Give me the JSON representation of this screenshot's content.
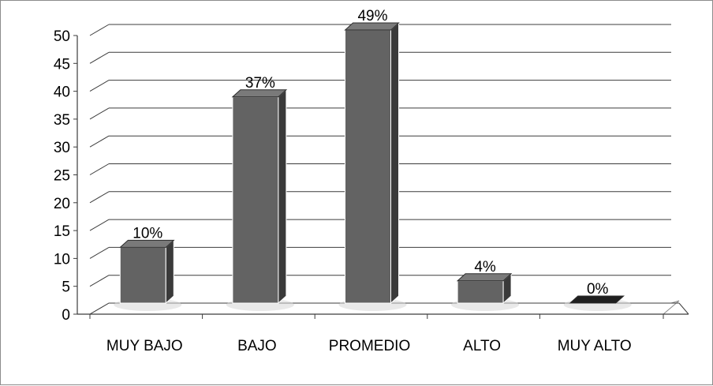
{
  "chart_data": {
    "type": "bar",
    "style": "3d-column",
    "categories": [
      "MUY BAJO",
      "BAJO",
      "PROMEDIO",
      "ALTO",
      "MUY ALTO"
    ],
    "values": [
      10,
      37,
      49,
      4,
      0
    ],
    "data_labels": [
      "10%",
      "37%",
      "49%",
      "4%",
      "0%"
    ],
    "ylim": [
      0,
      50
    ],
    "ytick_step": 5,
    "yticks": [
      "0",
      "5",
      "10",
      "15",
      "20",
      "25",
      "30",
      "35",
      "40",
      "45",
      "50"
    ],
    "grid": true,
    "legend": "none",
    "colors": {
      "bar_front": "#636363",
      "bar_side": "#3a3a3a",
      "bar_top": "#7a7a7a",
      "grid": "#3c3c3c",
      "floor": "#ffffff"
    }
  }
}
